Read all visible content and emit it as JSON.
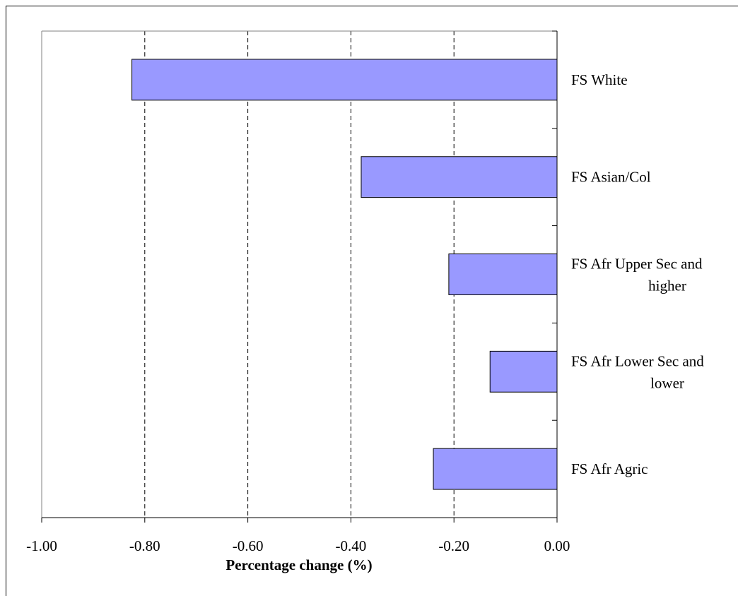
{
  "chart_data": {
    "type": "bar",
    "orientation": "horizontal",
    "title": "",
    "xlabel": "Percentage change (%)",
    "ylabel": "",
    "xlim": [
      -1.0,
      0.0
    ],
    "x_ticks": [
      "-1.00",
      "-0.80",
      "-0.60",
      "-0.40",
      "-0.20",
      "0.00"
    ],
    "grid": "vertical dashed",
    "legend": "none",
    "bar_color": "#9999ff",
    "categories": [
      "FS White",
      "FS Asian/Col",
      "FS Afr Upper Sec and higher",
      "FS Afr Lower Sec and lower",
      "FS Afr Agric"
    ],
    "category_label_lines": [
      [
        "FS White"
      ],
      [
        "FS Asian/Col"
      ],
      [
        "FS Afr Upper Sec and",
        "higher"
      ],
      [
        "FS Afr Lower Sec and",
        "lower"
      ],
      [
        "FS Afr Agric"
      ]
    ],
    "values": [
      -0.825,
      -0.38,
      -0.21,
      -0.13,
      -0.24
    ]
  }
}
